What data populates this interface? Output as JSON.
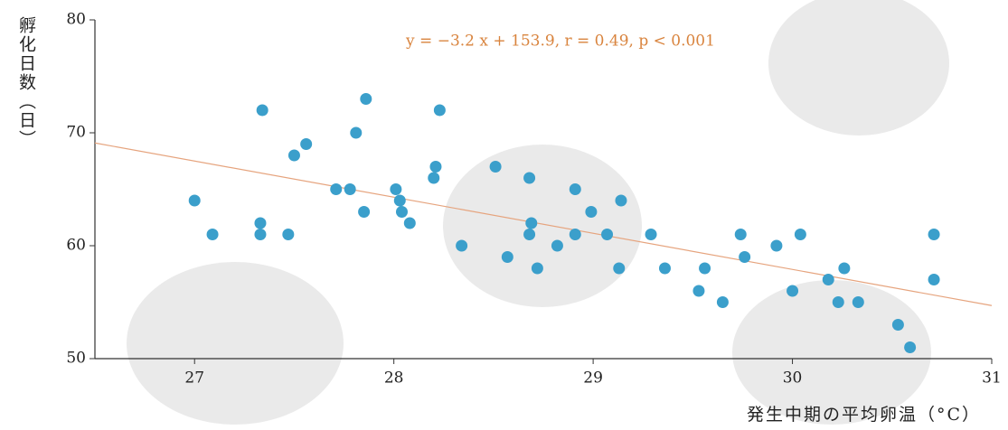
{
  "chart_data": {
    "type": "scatter",
    "x_label": "発生中期の平均卵温（°C）",
    "y_label": "孵化日数（日）",
    "annotation": "y = −3.2 x + 153.9,   r = 0.49,   p < 0.001",
    "regression": {
      "slope": -3.2,
      "intercept": 153.9,
      "color": "#e6a47e"
    },
    "color": "#3b9fcb",
    "xlim": [
      26.5,
      31
    ],
    "xticks": [
      27,
      28,
      29,
      30,
      31
    ],
    "ylim": [
      50,
      80
    ],
    "yticks": [
      50,
      60,
      70,
      80
    ],
    "x": [
      27.0,
      27.09,
      27.34,
      27.33,
      27.33,
      27.47,
      27.5,
      27.56,
      27.71,
      27.78,
      27.81,
      27.86,
      27.85,
      28.01,
      28.03,
      28.04,
      28.08,
      28.21,
      28.2,
      28.23,
      28.34,
      28.51,
      28.57,
      28.68,
      28.69,
      28.68,
      28.72,
      28.82,
      28.91,
      28.91,
      28.99,
      29.07,
      29.14,
      29.13,
      29.29,
      29.36,
      29.53,
      29.56,
      29.65,
      29.74,
      29.76,
      29.92,
      30.0,
      30.04,
      30.18,
      30.23,
      30.26,
      30.33,
      30.53,
      30.59,
      30.71,
      30.71
    ],
    "y": [
      64,
      61,
      72,
      62,
      61,
      61,
      68,
      69,
      65,
      65,
      70,
      73,
      63,
      65,
      64,
      63,
      62,
      67,
      66,
      72,
      60,
      67,
      59,
      66,
      62,
      61,
      58,
      60,
      65,
      61,
      63,
      61,
      64,
      58,
      61,
      58,
      56,
      58,
      55,
      61,
      59,
      60,
      56,
      61,
      57,
      55,
      58,
      55,
      53,
      51,
      61,
      57
    ]
  }
}
